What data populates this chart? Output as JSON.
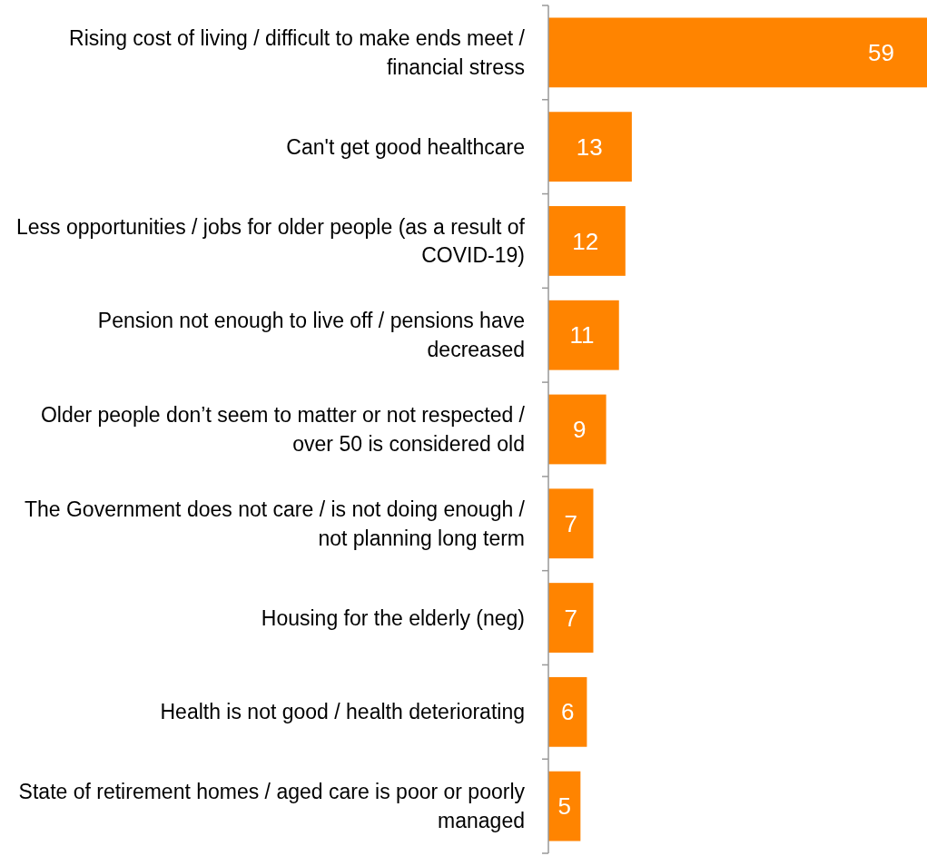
{
  "chart_data": {
    "type": "bar",
    "orientation": "horizontal",
    "data_labels": true,
    "color": "#ff8400",
    "categories": [
      "Rising cost of living / difficult to make ends meet / financial stress",
      "Can't get good healthcare",
      "Less opportunities / jobs for older people (as a result of COVID-19)",
      "Pension not enough to live off / pensions have decreased",
      "Older people don’t seem to matter or not respected / over 50 is considered old",
      "The Government does not care / is not doing enough / not planning long term",
      "Housing for the elderly (neg)",
      "Health is not good / health deteriorating",
      "State of retirement homes / aged care is poor or poorly managed"
    ],
    "values": [
      59,
      13,
      12,
      11,
      9,
      7,
      7,
      6,
      5
    ]
  }
}
